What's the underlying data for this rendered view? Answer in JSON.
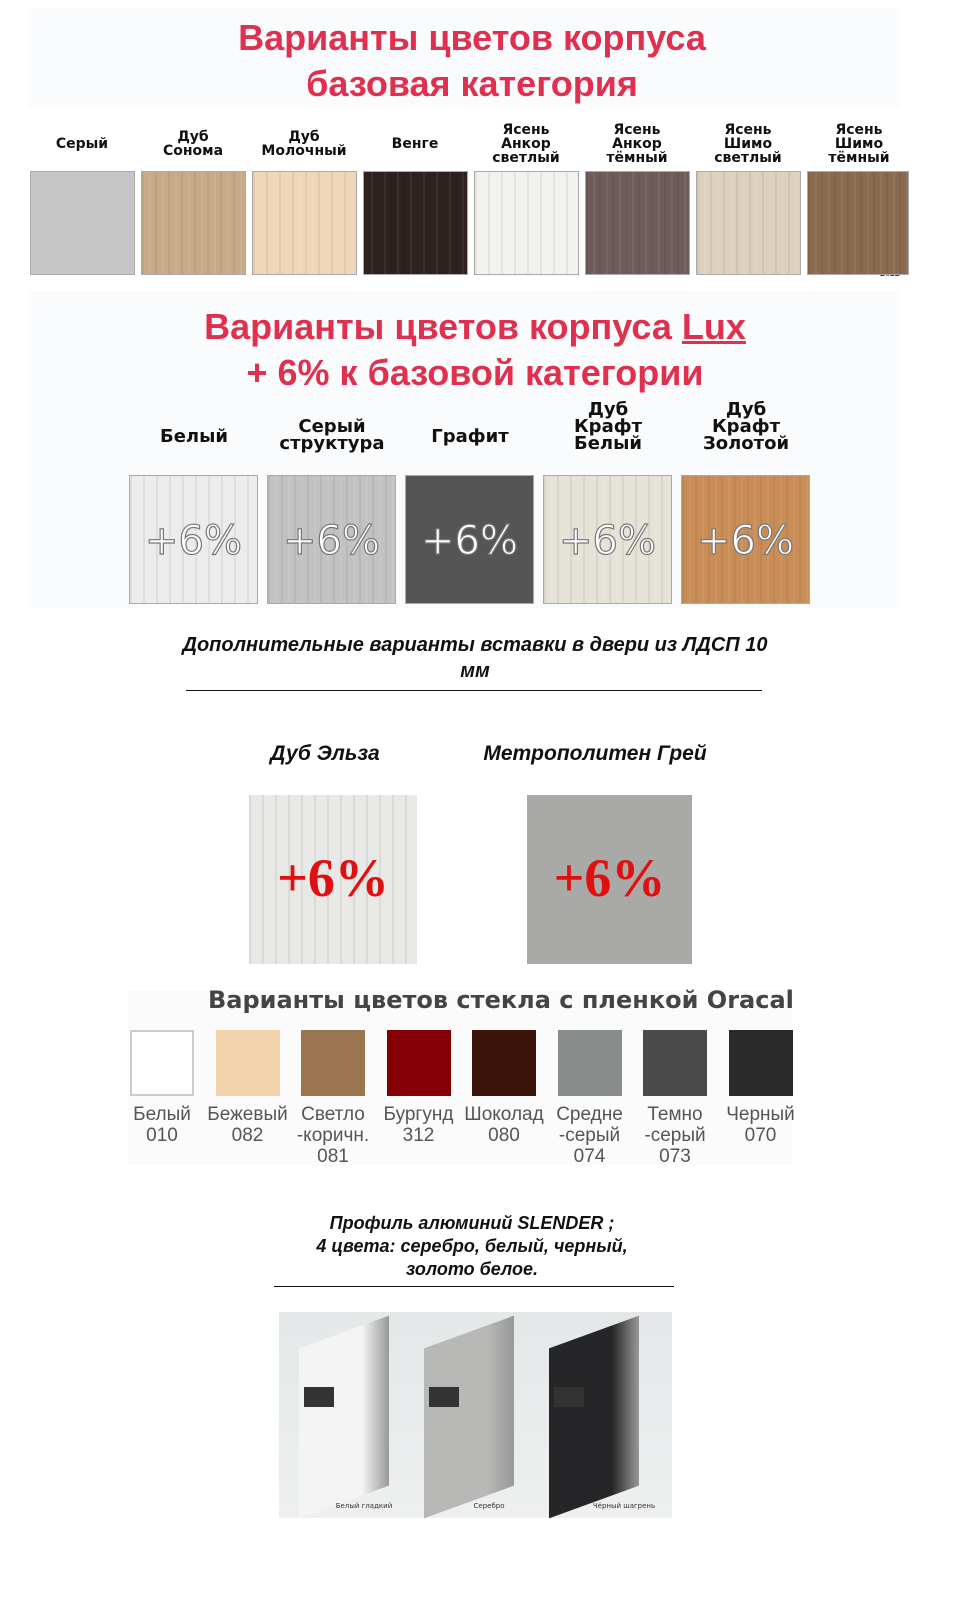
{
  "base": {
    "title_line1": "Варианты цветов корпуса",
    "title_line2": "базовая категория",
    "swatches": [
      {
        "label": "Серый",
        "color": "#c6c6c6"
      },
      {
        "label": "Дуб Сонома",
        "color": "#c8aa88"
      },
      {
        "label": "Дуб Молочный",
        "color": "#f0d6b8"
      },
      {
        "label": "Венге",
        "color": "#2e2220"
      },
      {
        "label": "Ясень Анкор светлый",
        "color": "#f1f1f0"
      },
      {
        "label": "Ясень Анкор тёмный",
        "color": "#6f5c5a"
      },
      {
        "label": "Ясень Шимо светлый",
        "color": "#ddd0bd"
      },
      {
        "label": "Ясень Шимо тёмный",
        "color": "#8a6a50"
      }
    ],
    "year_mark": "2022"
  },
  "lux": {
    "title_line1": "Варианты цветов корпуса ",
    "title_lux": "Lux",
    "title_line2": "+ 6% к базовой категории",
    "swatches": [
      {
        "label": "Белый",
        "color": "#ececec",
        "badge": "+6%"
      },
      {
        "label": "Серый структура",
        "color": "#c2c2c2",
        "badge": "+6%"
      },
      {
        "label": "Графит",
        "color": "#555555",
        "badge": "+6%"
      },
      {
        "label": "Дуб Крафт Белый",
        "color": "#e6e2d8",
        "badge": "+6%"
      },
      {
        "label": "Дуб Крафт Золотой",
        "color": "#c98e58",
        "badge": "+6%"
      }
    ]
  },
  "inserts": {
    "title": "Дополнительные варианты вставки в двери из ЛДСП 10 мм",
    "items": [
      {
        "label": "Дуб Эльза",
        "color": "#e8e8e6",
        "badge": "+6%"
      },
      {
        "label": "Метрополитен Грей",
        "color": "#a9a9a7",
        "badge": "+6%"
      }
    ]
  },
  "glass": {
    "title": "Варианты цветов стекла с пленкой Oracal",
    "items": [
      {
        "name": "Белый",
        "code": "010",
        "color": "#ffffff"
      },
      {
        "name": "Бежевый",
        "code": "082",
        "color": "#f2d3ab"
      },
      {
        "name": "Светло -коричн.",
        "code": "081",
        "color": "#9a7550"
      },
      {
        "name": "Бургунд",
        "code": "312",
        "color": "#850006"
      },
      {
        "name": "Шоколад",
        "code": "080",
        "color": "#3c150a"
      },
      {
        "name": "Средне -серый",
        "code": "074",
        "color": "#878b8a"
      },
      {
        "name": "Темно -серый",
        "code": "073",
        "color": "#4a4a4a"
      },
      {
        "name": "Черный",
        "code": "070",
        "color": "#2a2a2a"
      }
    ]
  },
  "profile": {
    "line1": "Профиль алюминий SLENDER ;",
    "line2": "4 цвета: серебро, белый, черный,",
    "line3": "золото белое.",
    "items": [
      {
        "label": "Белый гладкий",
        "color": "#f4f4f4"
      },
      {
        "label": "Серебро",
        "color": "#b8b8b6"
      },
      {
        "label": "Чёрный шагрень",
        "color": "#262628"
      }
    ]
  }
}
